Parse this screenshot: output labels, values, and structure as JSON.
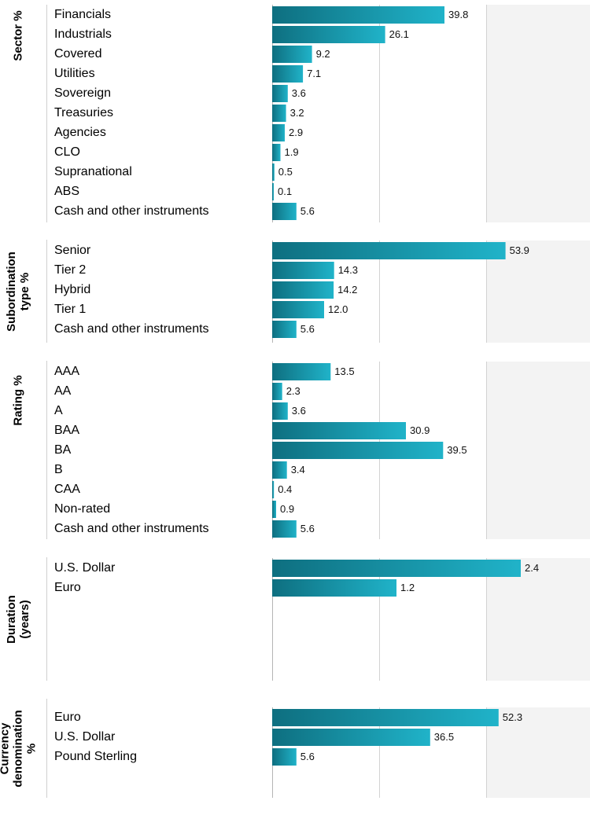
{
  "colors": {
    "bar_dark": "#0e6f80",
    "bar_light": "#20b3c9",
    "panel_bg": "#f3f3f3",
    "grid": "#d2d2d2"
  },
  "chart_data": [
    {
      "type": "bar",
      "orientation": "horizontal",
      "title": "Sector %",
      "categories": [
        "Financials",
        "Industrials",
        "Covered",
        "Utilities",
        "Sovereign",
        "Treasuries",
        "Agencies",
        "CLO",
        "Supranational",
        "ABS",
        "Cash and other instruments"
      ],
      "values": [
        39.8,
        26.1,
        9.2,
        7.1,
        3.6,
        3.2,
        2.9,
        1.9,
        0.5,
        0.1,
        5.6
      ],
      "value_labels": [
        "39.8",
        "26.1",
        "9.2",
        "7.1",
        "3.6",
        "3.2",
        "2.9",
        "1.9",
        "0.5",
        "0.1",
        "5.6"
      ],
      "xlim": [
        0,
        60
      ],
      "grid": true
    },
    {
      "type": "bar",
      "orientation": "horizontal",
      "title": "Subordination type %",
      "categories": [
        "Senior",
        "Tier 2",
        "Hybrid",
        "Tier 1",
        "Cash and other instruments"
      ],
      "values": [
        53.9,
        14.3,
        14.2,
        12.0,
        5.6
      ],
      "value_labels": [
        "53.9",
        "14.3",
        "14.2",
        "12.0",
        "5.6"
      ],
      "xlim": [
        0,
        80
      ],
      "grid": true
    },
    {
      "type": "bar",
      "orientation": "horizontal",
      "title": "Rating %",
      "categories": [
        "AAA",
        "AA",
        "A",
        "BAA",
        "BA",
        "B",
        "CAA",
        "Non-rated",
        "Cash and other instruments"
      ],
      "values": [
        13.5,
        2.3,
        3.6,
        30.9,
        39.5,
        3.4,
        0.4,
        0.9,
        5.6
      ],
      "value_labels": [
        "13.5",
        "2.3",
        "3.6",
        "30.9",
        "39.5",
        "3.4",
        "0.4",
        "0.9",
        "5.6"
      ],
      "xlim": [
        0,
        60
      ],
      "grid": true
    },
    {
      "type": "bar",
      "orientation": "horizontal",
      "title": "Duration (years)",
      "categories": [
        "U.S. Dollar",
        "Euro"
      ],
      "values": [
        2.4,
        1.2
      ],
      "value_labels": [
        "2.4",
        "1.2"
      ],
      "xlim": [
        0,
        3
      ],
      "grid": true
    },
    {
      "type": "bar",
      "orientation": "horizontal",
      "title": "Currency denomination %",
      "categories": [
        "Euro",
        "U.S. Dollar",
        "Pound Sterling"
      ],
      "values": [
        52.3,
        36.5,
        5.6
      ],
      "value_labels": [
        "52.3",
        "36.5",
        "5.6"
      ],
      "xlim": [
        0,
        75
      ],
      "grid": true
    }
  ]
}
